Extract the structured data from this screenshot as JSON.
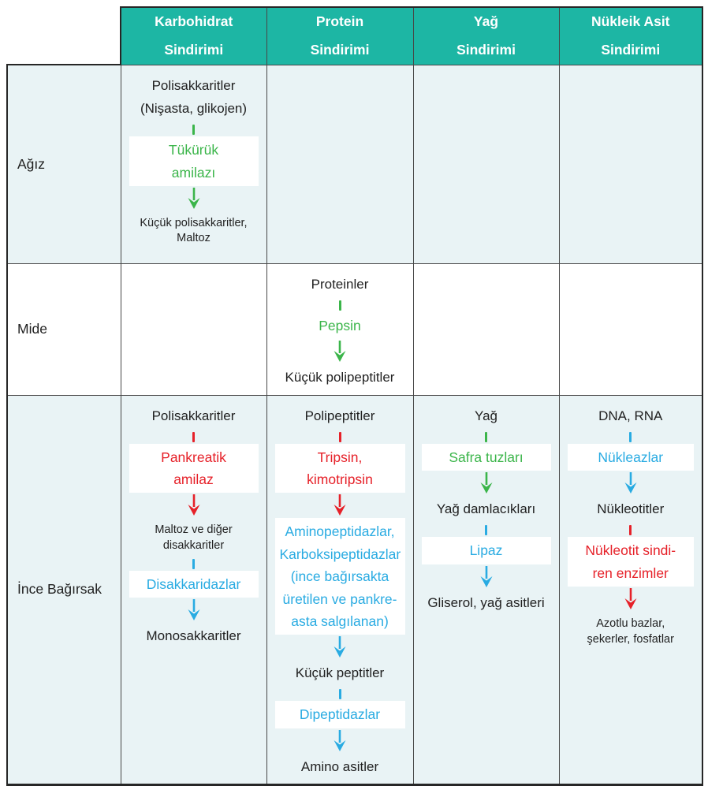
{
  "colors": {
    "teal_header": "#1db6a4",
    "row_tint": "#e9f3f5",
    "text": "#212121",
    "green": "#3bb54a",
    "red": "#e62129",
    "blue": "#29abe2"
  },
  "columns": [
    {
      "id": "karbohidrat",
      "lines": [
        "Karbohidrat",
        "Sindirimi"
      ]
    },
    {
      "id": "protein",
      "lines": [
        "Protein",
        "Sindirimi"
      ]
    },
    {
      "id": "yag",
      "lines": [
        "Yağ",
        "Sindirimi"
      ]
    },
    {
      "id": "nukleik-asit",
      "lines": [
        "Nükleik Asit",
        "Sindirimi"
      ]
    }
  ],
  "rows": [
    {
      "label": "Ağız",
      "cells": [
        {
          "steps": [
            {
              "type": "substrate",
              "lines": [
                "Polisakkaritler",
                "(Nişasta, glikojen)"
              ]
            },
            {
              "type": "enzyme",
              "lines": [
                "Tükürük",
                "amilazı"
              ],
              "color": "green"
            },
            {
              "type": "substrate",
              "small": true,
              "lines": [
                "Küçük polisakkaritler,",
                "Maltoz"
              ]
            }
          ]
        },
        {
          "steps": []
        },
        {
          "steps": []
        },
        {
          "steps": []
        }
      ]
    },
    {
      "label": "Mide",
      "cells": [
        {
          "steps": []
        },
        {
          "steps": [
            {
              "type": "substrate",
              "lines": [
                "Proteinler"
              ]
            },
            {
              "type": "enzyme",
              "lines": [
                "Pepsin"
              ],
              "color": "green"
            },
            {
              "type": "substrate",
              "lines": [
                "Küçük polipeptitler"
              ]
            }
          ]
        },
        {
          "steps": []
        },
        {
          "steps": []
        }
      ]
    },
    {
      "label": "İnce Bağırsak",
      "cells": [
        {
          "steps": [
            {
              "type": "substrate",
              "lines": [
                "Polisakkaritler"
              ]
            },
            {
              "type": "enzyme",
              "lines": [
                "Pankreatik",
                "amilaz"
              ],
              "color": "red"
            },
            {
              "type": "substrate",
              "small": true,
              "lines": [
                "Maltoz ve diğer",
                "disakkaritler"
              ]
            },
            {
              "type": "enzyme",
              "lines": [
                "Disakkaridazlar"
              ],
              "color": "blue"
            },
            {
              "type": "substrate",
              "lines": [
                "Monosakkaritler"
              ]
            }
          ]
        },
        {
          "steps": [
            {
              "type": "substrate",
              "lines": [
                "Polipeptitler"
              ]
            },
            {
              "type": "enzyme",
              "lines": [
                "Tripsin,",
                "kimotripsin"
              ],
              "color": "red"
            },
            {
              "type": "enzyme",
              "tick": false,
              "lines": [
                "Aminopeptidazlar,",
                "Karboksipeptidazlar",
                "(ince bağırsakta",
                "üretilen ve pankre-",
                "asta salgılanan)"
              ],
              "color": "blue"
            },
            {
              "type": "substrate",
              "lines": [
                "Küçük peptitler"
              ]
            },
            {
              "type": "enzyme",
              "lines": [
                "Dipeptidazlar"
              ],
              "color": "blue"
            },
            {
              "type": "substrate",
              "lines": [
                "Amino asitler"
              ]
            }
          ]
        },
        {
          "steps": [
            {
              "type": "substrate",
              "lines": [
                "Yağ"
              ]
            },
            {
              "type": "enzyme",
              "lines": [
                "Safra tuzları"
              ],
              "color": "green"
            },
            {
              "type": "substrate",
              "lines": [
                "Yağ damlacıkları"
              ]
            },
            {
              "type": "enzyme",
              "lines": [
                "Lipaz"
              ],
              "color": "blue"
            },
            {
              "type": "substrate",
              "lines": [
                "Gliserol, yağ asitleri"
              ]
            }
          ]
        },
        {
          "steps": [
            {
              "type": "substrate",
              "lines": [
                "DNA, RNA"
              ]
            },
            {
              "type": "enzyme",
              "lines": [
                "Nükleazlar"
              ],
              "color": "blue"
            },
            {
              "type": "substrate",
              "lines": [
                "Nükleotitler"
              ]
            },
            {
              "type": "enzyme",
              "lines": [
                "Nükleotit sindi-",
                "ren enzimler"
              ],
              "color": "red"
            },
            {
              "type": "substrate",
              "small": true,
              "lines": [
                "Azotlu bazlar,",
                "şekerler, fosfatlar"
              ]
            }
          ]
        }
      ]
    }
  ]
}
